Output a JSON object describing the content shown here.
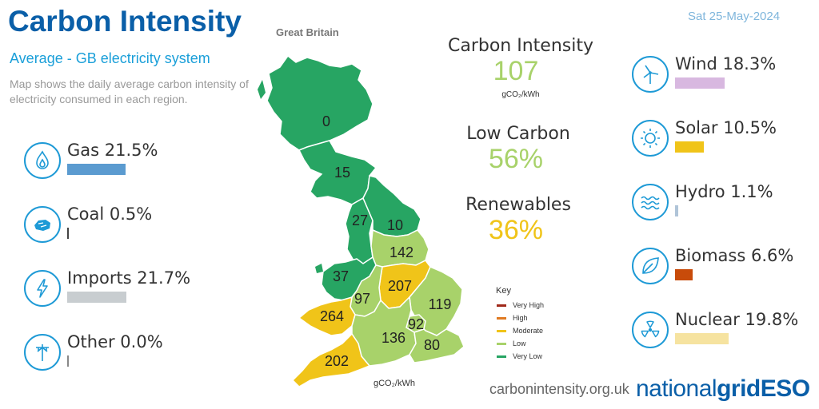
{
  "header": {
    "title": "Carbon Intensity",
    "region": "Great Britain",
    "date": "Sat 25-May-2024",
    "subtitle": "Average - GB electricity system",
    "description": "Map shows the daily average carbon intensity of electricity consumed in each region."
  },
  "metrics": {
    "carbon_intensity": {
      "label": "Carbon Intensity",
      "value": "107",
      "unit": "gCO₂/kWh",
      "color": "#a8d26a"
    },
    "low_carbon": {
      "label": "Low Carbon",
      "value": "56%",
      "color": "#a8d26a"
    },
    "renewables": {
      "label": "Renewables",
      "value": "36%",
      "color": "#f0c419"
    }
  },
  "fuels_left": [
    {
      "name": "Gas",
      "text": "Gas 21.5%",
      "percent": 21.5,
      "color": "#5b9bd0",
      "icon": "flame-icon"
    },
    {
      "name": "Coal",
      "text": "Coal 0.5%",
      "percent": 0.5,
      "color": "#444444",
      "icon": "coal-icon"
    },
    {
      "name": "Imports",
      "text": "Imports 21.7%",
      "percent": 21.7,
      "color": "#c8cdd0",
      "icon": "lightning-icon"
    },
    {
      "name": "Other",
      "text": "Other 0.0%",
      "percent": 0.0,
      "color": "#888888",
      "icon": "pylon-icon"
    }
  ],
  "fuels_right": [
    {
      "name": "Wind",
      "text": "Wind 18.3%",
      "percent": 18.3,
      "color": "#d8b8e0",
      "icon": "wind-turbine-icon"
    },
    {
      "name": "Solar",
      "text": "Solar 10.5%",
      "percent": 10.5,
      "color": "#f0c419",
      "icon": "sun-icon"
    },
    {
      "name": "Hydro",
      "text": "Hydro 1.1%",
      "percent": 1.1,
      "color": "#b0c4d8",
      "icon": "waves-icon"
    },
    {
      "name": "Biomass",
      "text": "Biomass 6.6%",
      "percent": 6.6,
      "color": "#c84b0a",
      "icon": "leaf-icon"
    },
    {
      "name": "Nuclear",
      "text": "Nuclear 19.8%",
      "percent": 19.8,
      "color": "#f6e3a0",
      "icon": "radiation-icon"
    }
  ],
  "map": {
    "regions": [
      {
        "id": "north-scotland",
        "value": "0",
        "color": "#27a563"
      },
      {
        "id": "south-scotland",
        "value": "15",
        "color": "#27a563"
      },
      {
        "id": "north-west-england",
        "value": "27",
        "color": "#27a563"
      },
      {
        "id": "north-east-england",
        "value": "10",
        "color": "#27a563"
      },
      {
        "id": "yorkshire",
        "value": "142",
        "color": "#a8d26a"
      },
      {
        "id": "north-wales",
        "value": "37",
        "color": "#27a563"
      },
      {
        "id": "east-midlands",
        "value": "207",
        "color": "#f0c419"
      },
      {
        "id": "west-midlands",
        "value": "97",
        "color": "#a8d26a"
      },
      {
        "id": "east-england",
        "value": "119",
        "color": "#a8d26a"
      },
      {
        "id": "south-wales",
        "value": "264",
        "color": "#f0c419"
      },
      {
        "id": "london",
        "value": "92",
        "color": "#a8d26a"
      },
      {
        "id": "south-england",
        "value": "136",
        "color": "#a8d26a"
      },
      {
        "id": "south-east-england",
        "value": "80",
        "color": "#a8d26a"
      },
      {
        "id": "south-west-england",
        "value": "202",
        "color": "#f0c419"
      }
    ]
  },
  "key": {
    "title": "Key",
    "unit": "gCO₂/kWh",
    "items": [
      {
        "label": "Very High",
        "color": "#a0291a"
      },
      {
        "label": "High",
        "color": "#e07a22"
      },
      {
        "label": "Moderate",
        "color": "#f0c419"
      },
      {
        "label": "Low",
        "color": "#a8d26a"
      },
      {
        "label": "Very Low",
        "color": "#27a563"
      }
    ]
  },
  "footer": {
    "website": "carbonintensity.org.uk",
    "brand_1": "national",
    "brand_2": "grid",
    "brand_3": "ESO"
  }
}
